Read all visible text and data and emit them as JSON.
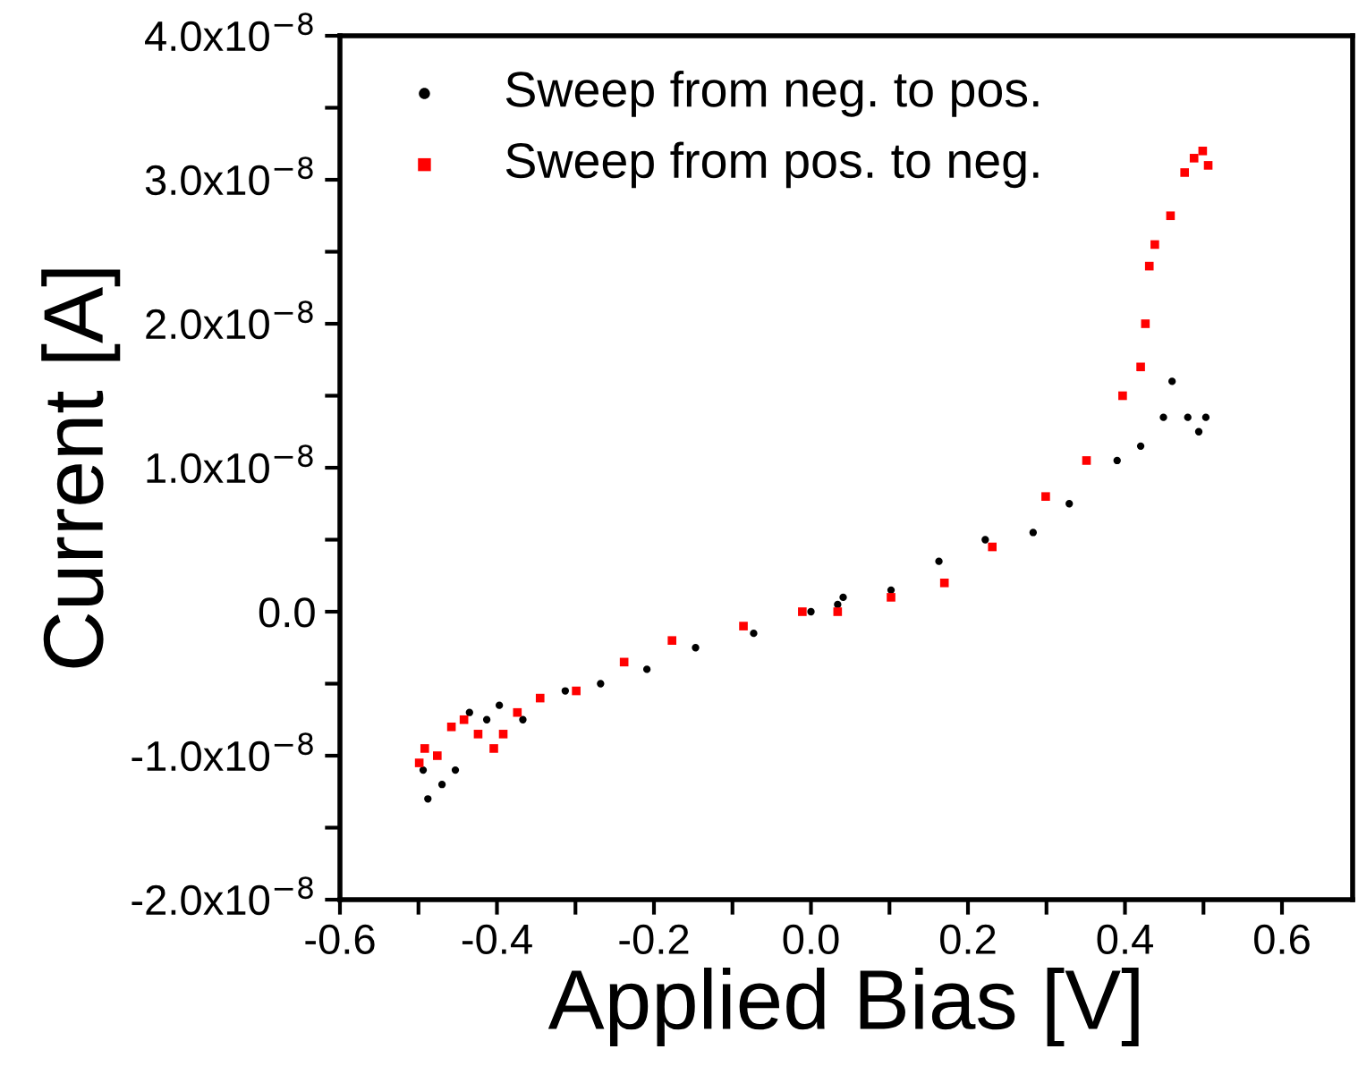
{
  "chart_data": {
    "type": "scatter",
    "xlabel": "Applied Bias [V]",
    "ylabel": "Current [A]",
    "xlim": [
      -0.6,
      0.69
    ],
    "ylim": [
      -2e-08,
      4e-08
    ],
    "xticks": [
      -0.6,
      {
        "value": -0.5,
        "label": null
      },
      -0.4,
      {
        "value": -0.3,
        "label": null
      },
      -0.2,
      {
        "value": -0.1,
        "label": null
      },
      {
        "value": 0,
        "label": "0.0"
      },
      {
        "value": 0.1,
        "label": null
      },
      0.2,
      {
        "value": 0.3,
        "label": null
      },
      0.4,
      {
        "value": 0.5,
        "label": null
      },
      0.6
    ],
    "yticks": [
      {
        "value": -2e-08,
        "label": "-2.0x10$^{−8}$"
      },
      {
        "value": -1.5e-08,
        "label": null
      },
      {
        "value": -1e-08,
        "label": "-1.0x10$^{−8}$"
      },
      {
        "value": -5e-09,
        "label": null
      },
      {
        "value": 0,
        "label": "0.0"
      },
      {
        "value": 5e-09,
        "label": null
      },
      {
        "value": 1e-08,
        "label": "1.0x10$^{−8}$"
      },
      {
        "value": 1.5e-08,
        "label": null
      },
      {
        "value": 2e-08,
        "label": "2.0x10$^{−8}$"
      },
      {
        "value": 2.5e-08,
        "label": null
      },
      {
        "value": 3e-08,
        "label": "3.0x10$^{−8}$"
      },
      {
        "value": 3.5e-08,
        "label": null
      },
      {
        "value": 4e-08,
        "label": "4.0x10$^{−8}$"
      }
    ],
    "grid": false,
    "legend": "top left",
    "series": [
      {
        "name": "Sweep from neg. to pos.",
        "color": "#000000",
        "marker": "circle",
        "x": [
          -0.494,
          -0.488,
          -0.47,
          -0.453,
          -0.435,
          -0.413,
          -0.397,
          -0.367,
          -0.313,
          -0.268,
          -0.209,
          -0.147,
          -0.073,
          0.0,
          0.034,
          0.041,
          0.102,
          0.163,
          0.222,
          0.283,
          0.329,
          0.39,
          0.42,
          0.449,
          0.46,
          0.48,
          0.494,
          0.503
        ],
        "values": [
          -1.1e-08,
          -1.3e-08,
          -1.2e-08,
          -1.1e-08,
          -7e-09,
          -7.5e-09,
          -6.5e-09,
          -7.5e-09,
          -5.5e-09,
          -5e-09,
          -4e-09,
          -2.5e-09,
          -1.5e-09,
          0,
          5e-10,
          1e-09,
          1.5e-09,
          3.5e-09,
          5e-09,
          5.5e-09,
          7.5e-09,
          1.05e-08,
          1.15e-08,
          1.35e-08,
          1.6e-08,
          1.35e-08,
          1.25e-08,
          1.35e-08
        ]
      },
      {
        "name": "Sweep from pos. to neg.",
        "color": "#ff0000",
        "marker": "square",
        "x": [
          -0.499,
          -0.492,
          -0.476,
          -0.458,
          -0.442,
          -0.424,
          -0.404,
          -0.392,
          -0.374,
          -0.345,
          -0.299,
          -0.238,
          -0.177,
          -0.086,
          -0.011,
          0.034,
          0.102,
          0.17,
          0.231,
          0.299,
          0.351,
          0.397,
          0.42,
          0.426,
          0.431,
          0.438,
          0.458,
          0.476,
          0.488,
          0.499,
          0.506
        ],
        "values": [
          -1.05e-08,
          -9.5e-09,
          -1e-08,
          -8e-09,
          -7.5e-09,
          -8.5e-09,
          -9.5e-09,
          -8.5e-09,
          -7e-09,
          -6e-09,
          -5.5e-09,
          -3.5e-09,
          -2e-09,
          -1e-09,
          0,
          0,
          1e-09,
          2e-09,
          4.5e-09,
          8e-09,
          1.05e-08,
          1.5e-08,
          1.7e-08,
          2e-08,
          2.4e-08,
          2.55e-08,
          2.75e-08,
          3.05e-08,
          3.15e-08,
          3.2e-08,
          3.1e-08
        ]
      }
    ]
  }
}
